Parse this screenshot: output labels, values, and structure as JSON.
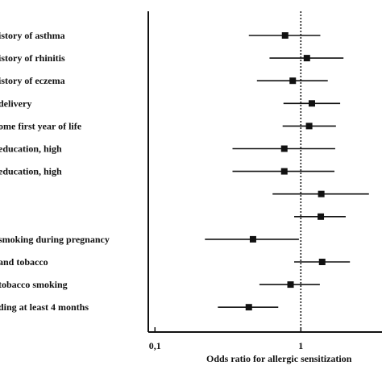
{
  "chart_data": {
    "type": "forest",
    "xlabel": "Odds ratio for allergic sensitization",
    "x_scale": "log",
    "xlim": [
      0.09,
      3.6
    ],
    "x_ticks": [
      {
        "value": 0.1,
        "label": "0,1"
      },
      {
        "value": 1,
        "label": "1"
      }
    ],
    "reference_line": 1,
    "colors": {
      "marks": "#111111",
      "reference": "#111111"
    },
    "rows": [
      {
        "label": "istory of asthma",
        "or": 0.78,
        "lo": 0.44,
        "hi": 1.36
      },
      {
        "label": "istory of rhinitis",
        "or": 1.1,
        "lo": 0.61,
        "hi": 1.96
      },
      {
        "label": "istory of eczema",
        "or": 0.88,
        "lo": 0.5,
        "hi": 1.53
      },
      {
        "label": " delivery",
        "or": 1.19,
        "lo": 0.76,
        "hi": 1.86
      },
      {
        "label": "ome first year of life",
        "or": 1.14,
        "lo": 0.75,
        "hi": 1.74
      },
      {
        "label": " education, high",
        "or": 0.77,
        "lo": 0.34,
        "hi": 1.72
      },
      {
        "label": "education, high",
        "or": 0.77,
        "lo": 0.34,
        "hi": 1.7
      },
      {
        "label": "",
        "or": 1.38,
        "lo": 0.64,
        "hi": 2.93
      },
      {
        "label": "",
        "or": 1.37,
        "lo": 0.9,
        "hi": 2.03
      },
      {
        "label": "smoking during pregnancy",
        "or": 0.47,
        "lo": 0.22,
        "hi": 0.97
      },
      {
        "label": " and tobacco",
        "or": 1.4,
        "lo": 0.9,
        "hi": 2.17
      },
      {
        "label": " tobacco smoking",
        "or": 0.85,
        "lo": 0.52,
        "hi": 1.35
      },
      {
        "label": "ding at least 4 months",
        "or": 0.44,
        "lo": 0.27,
        "hi": 0.7
      }
    ]
  }
}
